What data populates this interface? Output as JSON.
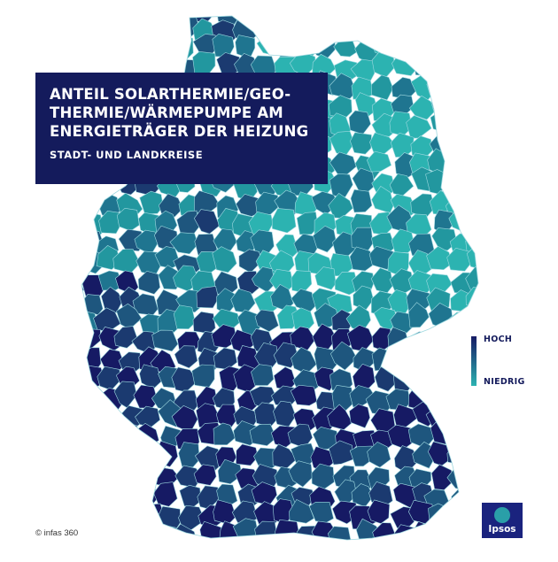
{
  "title": "ANTEIL SOLARTHERMIE/GEO-THERMIE/WÄRMEPUMPE AM ENERGIETRÄGER DER HEIZUNG",
  "title_lines": [
    "ANTEIL SOLARTHERMIE/GEO-",
    "THERMIE/WÄRMEPUMPE AM",
    "ENERGIETRÄGER DER HEIZUNG"
  ],
  "subtitle": "STADT- UND LANDKREISE",
  "legend": {
    "high_label": "HOCH",
    "low_label": "NIEDRIG",
    "high_color": "#161a64",
    "low_color": "#2cb3b1"
  },
  "credit": "© infas 360",
  "logo": {
    "text": "Ipsos",
    "color": "#1a237e",
    "accent": "#2a9fa8"
  },
  "colors": {
    "scale": [
      "#2cb3b1",
      "#22979f",
      "#1f7590",
      "#1e567e",
      "#1b3a70",
      "#161a64"
    ],
    "border": "#9fd9e0",
    "title_bg": "#141b5c"
  }
}
